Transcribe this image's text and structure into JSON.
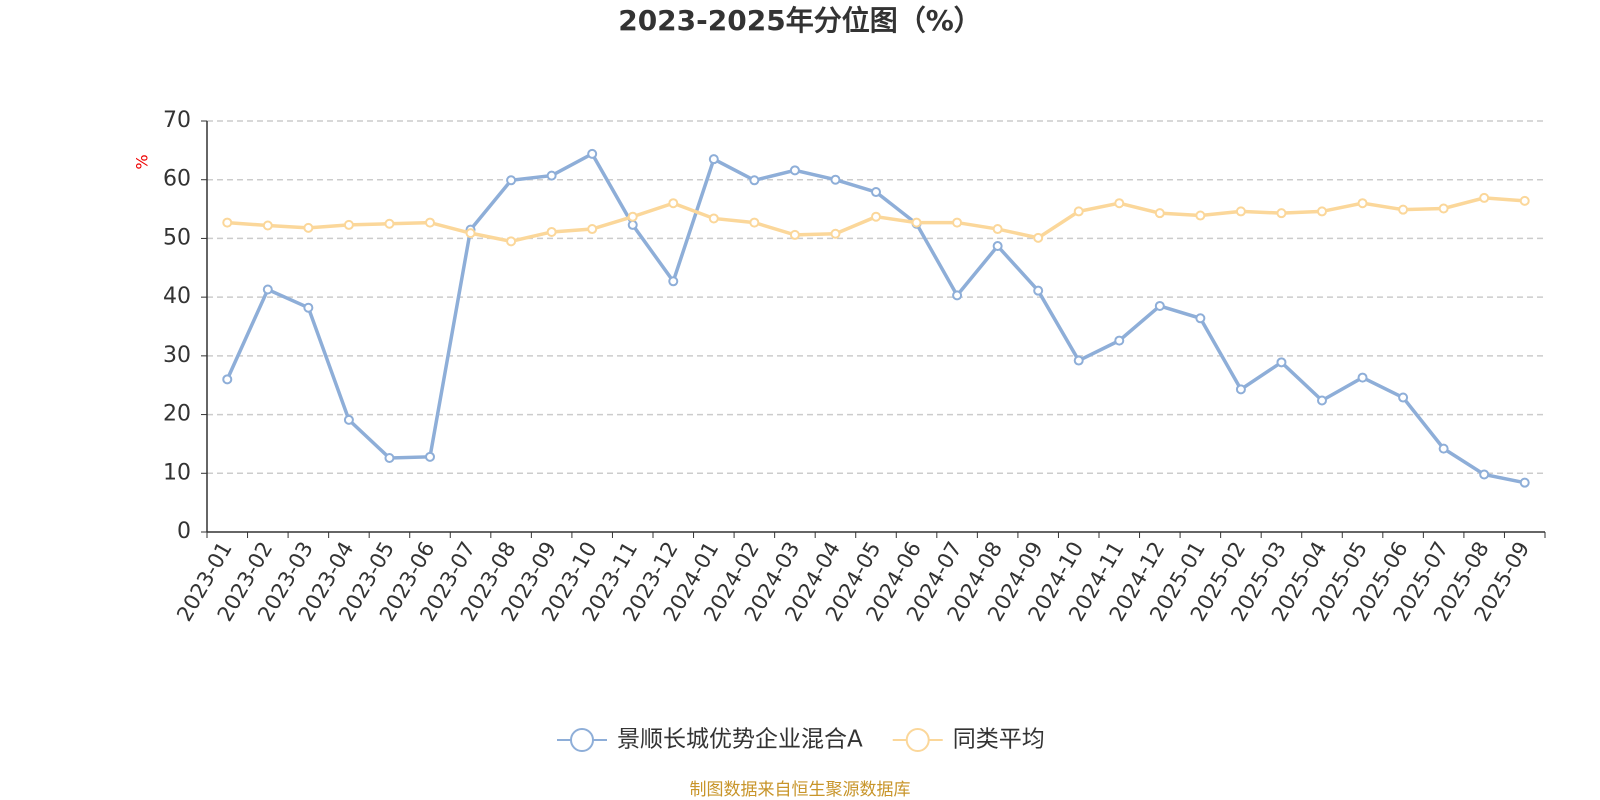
{
  "chart_data": {
    "type": "line",
    "title": "2023-2025年分位图（%）",
    "y_label": "%",
    "categories": [
      "2023-01",
      "2023-02",
      "2023-03",
      "2023-04",
      "2023-05",
      "2023-06",
      "2023-07",
      "2023-08",
      "2023-09",
      "2023-10",
      "2023-11",
      "2023-12",
      "2024-01",
      "2024-02",
      "2024-03",
      "2024-04",
      "2024-05",
      "2024-06",
      "2024-07",
      "2024-08",
      "2024-09",
      "2024-10",
      "2024-11",
      "2024-12",
      "2025-01",
      "2025-02",
      "2025-03",
      "2025-04",
      "2025-05",
      "2025-06",
      "2025-07",
      "2025-08",
      "2025-09"
    ],
    "series": [
      {
        "name": "景顺长城优势企业混合A",
        "color": "#8eaed8",
        "values": [
          26.0,
          41.3,
          38.2,
          19.1,
          12.6,
          12.8,
          51.5,
          59.9,
          60.7,
          64.4,
          52.3,
          42.7,
          63.5,
          59.9,
          61.6,
          60.0,
          57.9,
          52.5,
          40.3,
          48.7,
          41.1,
          29.2,
          32.6,
          38.5,
          36.4,
          24.3,
          28.9,
          22.4,
          26.3,
          22.9,
          14.2,
          9.8,
          8.4
        ]
      },
      {
        "name": "同类平均",
        "color": "#fbd79a",
        "values": [
          52.7,
          52.2,
          51.8,
          52.3,
          52.5,
          52.7,
          50.9,
          49.5,
          51.1,
          51.6,
          53.7,
          56.0,
          53.4,
          52.7,
          50.6,
          50.8,
          53.7,
          52.7,
          52.7,
          51.6,
          50.1,
          54.6,
          56.0,
          54.3,
          53.9,
          54.6,
          54.3,
          54.6,
          56.0,
          54.9,
          55.1,
          56.9,
          56.4
        ]
      }
    ],
    "ylim": [
      0,
      70
    ],
    "yticks": [
      0,
      10,
      20,
      30,
      40,
      50,
      60,
      70
    ],
    "grid": true,
    "legend": "bottom",
    "source": "制图数据来自恒生聚源数据库"
  }
}
